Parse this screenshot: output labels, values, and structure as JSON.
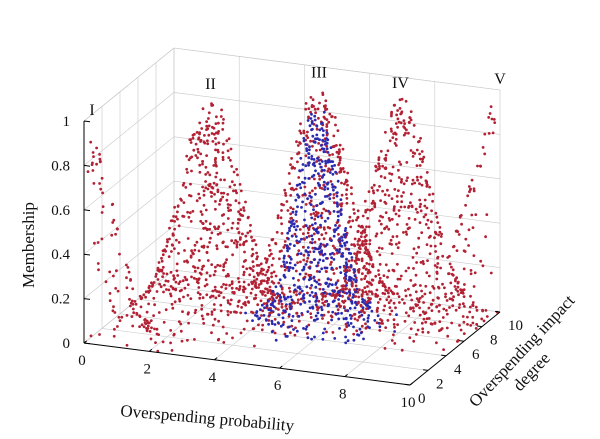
{
  "chart_data": {
    "type": "scatter",
    "title": "",
    "xlabel": "Overspending probability",
    "ylabel": "Overspending impact degree",
    "zlabel": "Membership",
    "xlim": [
      0,
      10
    ],
    "ylim": [
      0,
      10
    ],
    "zlim": [
      0,
      1
    ],
    "grid": true,
    "x_ticks": [
      "0",
      "2",
      "4",
      "6",
      "8",
      "10"
    ],
    "y_ticks": [
      "0",
      "2",
      "4",
      "6",
      "8",
      "10"
    ],
    "z_ticks": [
      "0",
      "0.2",
      "0.4",
      "0.6",
      "0.8",
      "1"
    ],
    "colors": {
      "red_series": "#b22234",
      "blue_series": "#2a2ab0"
    },
    "peaks": [
      {
        "label": "I",
        "x": 0,
        "y": 0,
        "z": 1,
        "color": "#b22234"
      },
      {
        "label": "II",
        "x": 2.5,
        "y": 5,
        "z": 1,
        "color": "#b22234"
      },
      {
        "label": "III",
        "x": 5,
        "y": 8,
        "z": 1,
        "color": "#b22234"
      },
      {
        "label": "IV",
        "x": 7.5,
        "y": 8,
        "z": 1,
        "color": "#b22234"
      },
      {
        "label": "V",
        "x": 10,
        "y": 10,
        "z": 1,
        "color": "#b22234"
      }
    ],
    "blue_peak": {
      "x": 5.5,
      "y": 6,
      "z": 1
    }
  }
}
